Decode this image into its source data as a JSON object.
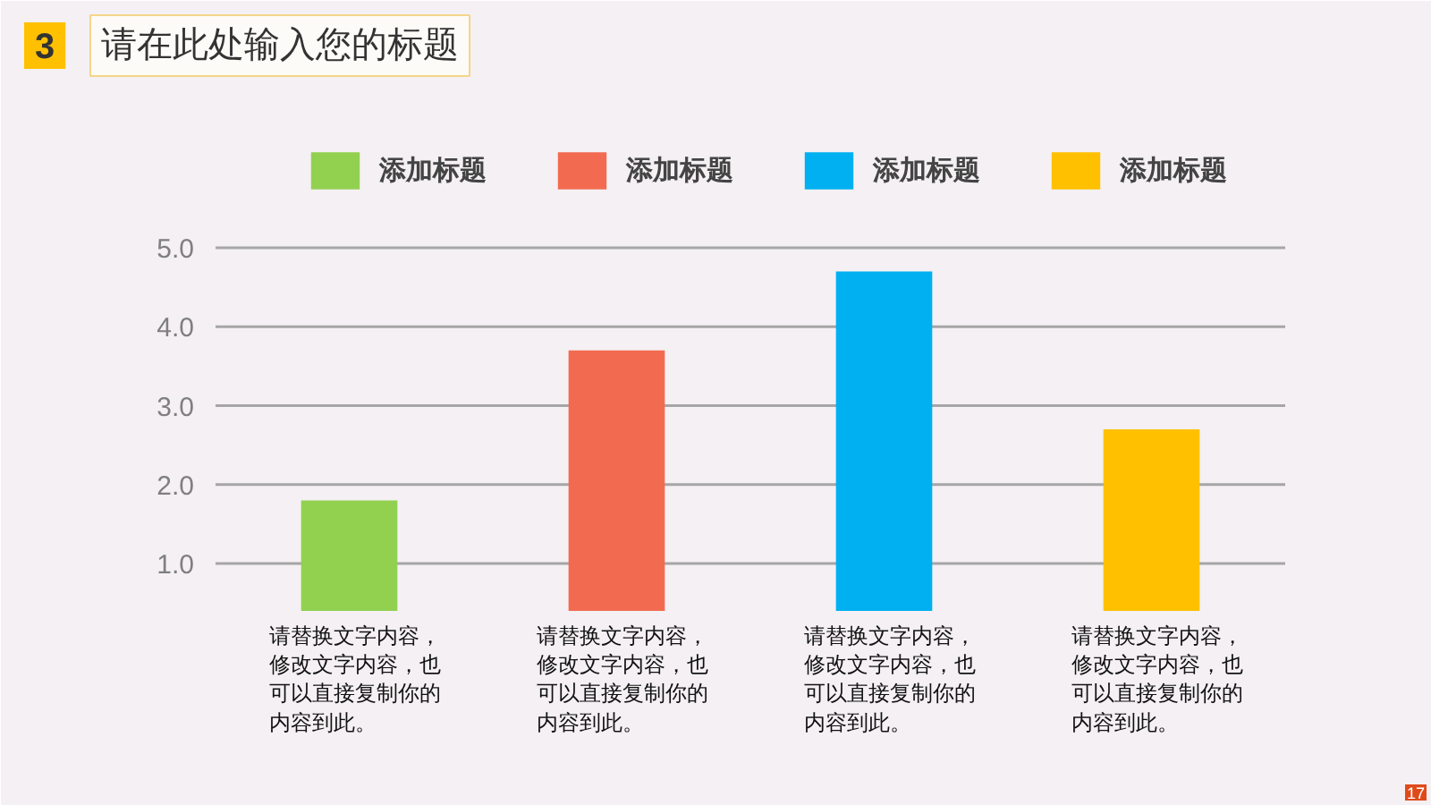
{
  "chart_data": {
    "type": "bar",
    "title": "请在此处输入您的标题",
    "categories": [
      null,
      null,
      null,
      null
    ],
    "series": [
      {
        "name": "添加标题",
        "color": "#92d050",
        "values": [
          1.8,
          null,
          null,
          null
        ]
      },
      {
        "name": "添加标题",
        "color": "#f26b50",
        "values": [
          null,
          3.7,
          null,
          null
        ]
      },
      {
        "name": "添加标题",
        "color": "#00b0f0",
        "values": [
          null,
          null,
          4.7,
          null
        ]
      },
      {
        "name": "添加标题",
        "color": "#ffc000",
        "values": [
          null,
          null,
          null,
          2.7
        ]
      }
    ],
    "ylim": [
      0.4,
      5.0
    ],
    "yticks": [
      {
        "value": 1,
        "label": "1.0"
      },
      {
        "value": 2,
        "label": "2.0"
      },
      {
        "value": 3,
        "label": "3.0"
      },
      {
        "value": 4,
        "label": "4.0"
      },
      {
        "value": 5,
        "label": "5.0"
      }
    ],
    "grid": "y",
    "legend": "top",
    "annotations": [
      "3",
      "请替换文字内容，修改文字内容，也可以直接复制你的内容到此。",
      "请替换文字内容，修改文字内容，也可以直接复制你的内容到此。",
      "请替换文字内容，修改文字内容，也可以直接复制你的内容到此。",
      "请替换文字内容，修改文字内容，也可以直接复制你的内容到此。",
      "17"
    ]
  }
}
